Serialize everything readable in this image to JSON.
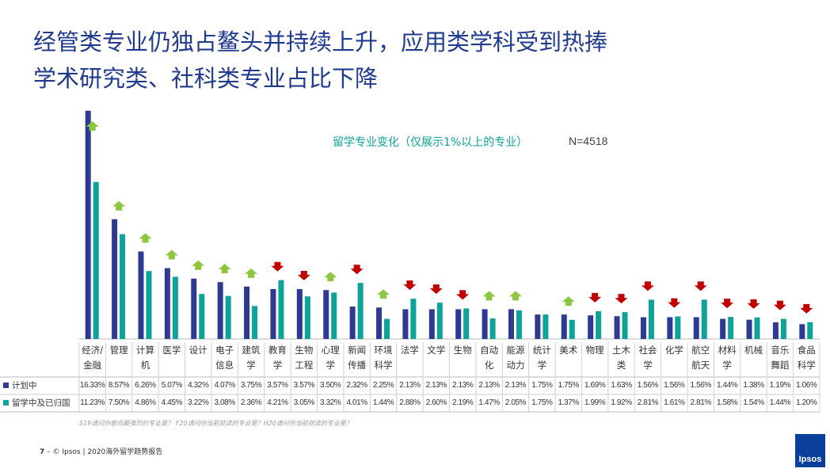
{
  "chart_data": {
    "type": "bar",
    "title": [
      "经管类专业仍独占鳌头并持续上升，应用类学科受到热捧",
      "学术研究类、社科类专业占比下降"
    ],
    "subtitle": "留学专业变化（仅展示1%以上的专业）",
    "annotation": "N=4518",
    "categories": [
      "经济/金融",
      "管理",
      "计算机",
      "医学",
      "设计",
      "电子信息",
      "建筑学",
      "教育学",
      "生物工程",
      "心理学",
      "新闻传播",
      "环境科学",
      "法学",
      "文学",
      "生物",
      "自动化",
      "能源动力",
      "统计学",
      "美术",
      "物理",
      "土木类",
      "社会学",
      "化学",
      "航空航天",
      "材料学",
      "机械",
      "音乐舞蹈",
      "食品科学"
    ],
    "series": [
      {
        "name": "计划中",
        "color": "#2e3a91",
        "values": [
          16.33,
          8.57,
          6.26,
          5.07,
          4.32,
          4.07,
          3.75,
          3.57,
          3.57,
          3.5,
          2.32,
          2.25,
          2.13,
          2.13,
          2.13,
          2.13,
          2.13,
          1.75,
          1.75,
          1.69,
          1.63,
          1.56,
          1.56,
          1.56,
          1.44,
          1.38,
          1.19,
          1.06
        ],
        "value_labels": [
          "16.33%",
          "8.57%",
          "6.26%",
          "5.07%",
          "4.32%",
          "4.07%",
          "3.75%",
          "3.57%",
          "3.57%",
          "3.50%",
          "2.32%",
          "2.25%",
          "2.13%",
          "2.13%",
          "2.13%",
          "2.13%",
          "2.13%",
          "1.75%",
          "1.75%",
          "1.69%",
          "1.63%",
          "1.56%",
          "1.56%",
          "1.56%",
          "1.44%",
          "1.38%",
          "1.19%",
          "1.06%"
        ]
      },
      {
        "name": "留学中及已归国",
        "color": "#0ea39a",
        "values": [
          11.23,
          7.5,
          4.86,
          4.45,
          3.22,
          3.08,
          2.36,
          4.21,
          3.05,
          3.32,
          4.01,
          1.44,
          2.88,
          2.6,
          2.19,
          1.47,
          2.05,
          1.75,
          1.37,
          1.99,
          1.92,
          2.81,
          1.61,
          2.81,
          1.58,
          1.54,
          1.44,
          1.2
        ],
        "value_labels": [
          "11.23%",
          "7.50%",
          "4.86%",
          "4.45%",
          "3.22%",
          "3.08%",
          "2.36%",
          "4.21%",
          "3.05%",
          "3.32%",
          "4.01%",
          "1.44%",
          "2.88%",
          "2.60%",
          "2.19%",
          "1.47%",
          "2.05%",
          "1.75%",
          "1.37%",
          "1.99%",
          "1.92%",
          "2.81%",
          "1.61%",
          "2.81%",
          "1.58%",
          "1.54%",
          "1.44%",
          "1.20%"
        ]
      }
    ],
    "trend": [
      "up",
      "up",
      "up",
      "up",
      "up",
      "up",
      "up",
      "down",
      "down",
      "up",
      "down",
      "up",
      "down",
      "down",
      "down",
      "up",
      "up",
      null,
      "up",
      "down",
      "down",
      "down",
      "down",
      "down",
      "down",
      "down",
      "down",
      "down"
    ],
    "trend_colors": {
      "up": "#8dc63f",
      "down": "#c00000"
    },
    "note": "S19请问你意向最强烈的专业是？ F20请问你当前就读的专业是？H20请问你当前就读的专业是？"
  },
  "footer": {
    "page": "7",
    "text": "– © Ipsos | 2020海外留学趋势报告"
  },
  "logo": "Ipsos"
}
